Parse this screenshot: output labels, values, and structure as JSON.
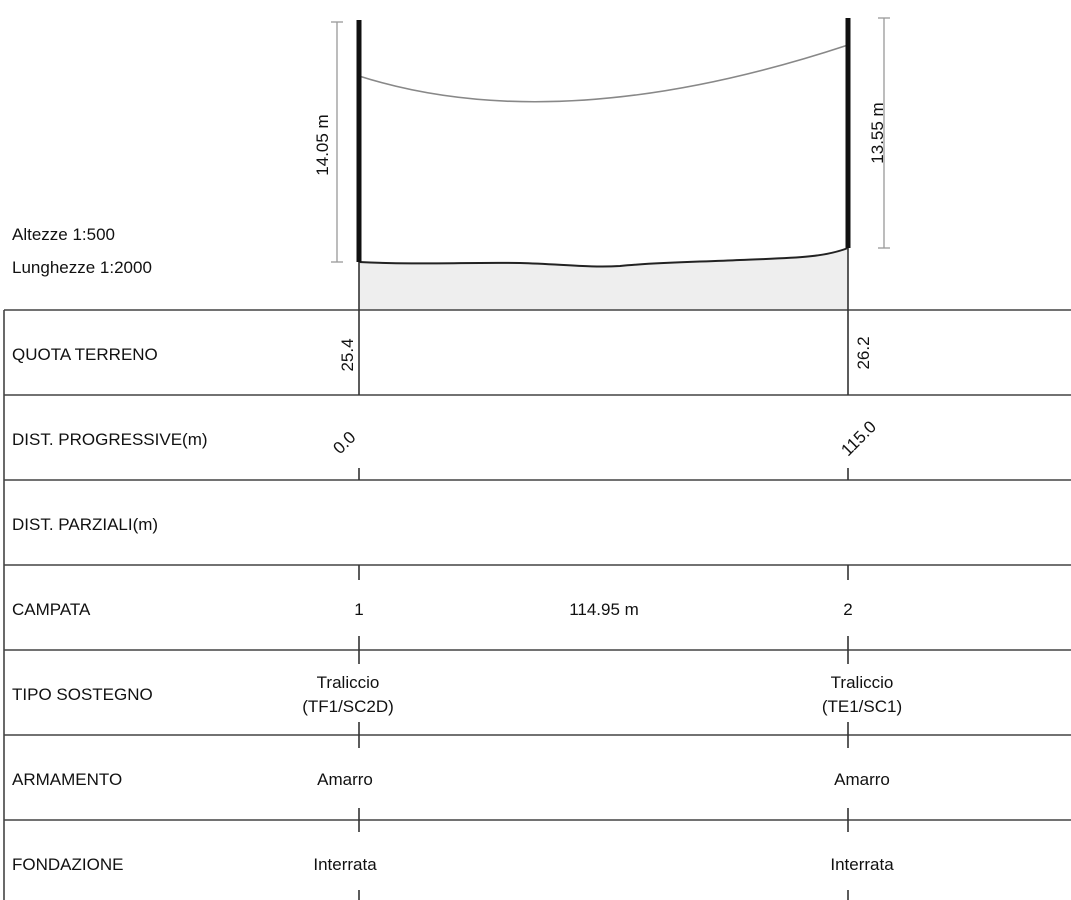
{
  "scale": {
    "heights": "Altezze 1:500",
    "lengths": "Lunghezze 1:2000"
  },
  "supports": [
    {
      "height_label": "14.05 m",
      "ground_elevation": "25.4",
      "progressive": "0.0",
      "number": "1",
      "type_line1": "Traliccio",
      "type_line2": "(TF1/SC2D)",
      "armamento": "Amarro",
      "fondazione": "Interrata"
    },
    {
      "height_label": "13.55 m",
      "ground_elevation": "26.2",
      "progressive": "115.0",
      "number": "2",
      "type_line1": "Traliccio",
      "type_line2": "(TE1/SC1)",
      "armamento": "Amarro",
      "fondazione": "Interrata"
    }
  ],
  "span": {
    "length": "114.95 m"
  },
  "rows": {
    "quota": "QUOTA TERRENO",
    "progressive": "DIST. PROGRESSIVE(m)",
    "parziali": "DIST. PARZIALI(m)",
    "campata": "CAMPATA",
    "tipo": "TIPO SOSTEGNO",
    "armamento": "ARMAMENTO",
    "fondazione": "FONDAZIONE"
  },
  "colors": {
    "line": "#222222",
    "ground_fill": "#eeeeee",
    "conductor": "#888888",
    "dimension": "#999999"
  }
}
